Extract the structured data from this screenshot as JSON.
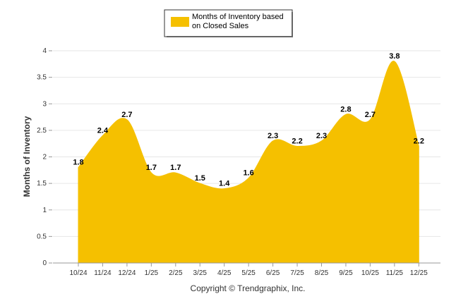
{
  "chart_data": {
    "type": "area",
    "categories": [
      "10/24",
      "11/24",
      "12/24",
      "1/25",
      "2/25",
      "3/25",
      "4/25",
      "5/25",
      "6/25",
      "7/25",
      "8/25",
      "9/25",
      "10/25",
      "11/25",
      "12/25"
    ],
    "series": [
      {
        "name": "Months of Inventory based on Closed Sales",
        "values": [
          1.8,
          2.4,
          2.7,
          1.7,
          1.7,
          1.5,
          1.4,
          1.6,
          2.3,
          2.2,
          2.3,
          2.8,
          2.7,
          3.8,
          2.2
        ]
      }
    ],
    "ylabel": "Months of Inventory",
    "xlabel": "",
    "ylim": [
      0,
      4
    ],
    "yticks": [
      "0",
      "0.5",
      "1",
      "1.5",
      "2",
      "2.5",
      "3",
      "3.5",
      "4"
    ],
    "grid": true,
    "legend": {
      "position": "top-center",
      "label_line1": "Months of Inventory based",
      "label_line2": "on Closed Sales"
    },
    "color": "#f5c000",
    "footer": "Copyright © Trendgraphix, Inc."
  }
}
